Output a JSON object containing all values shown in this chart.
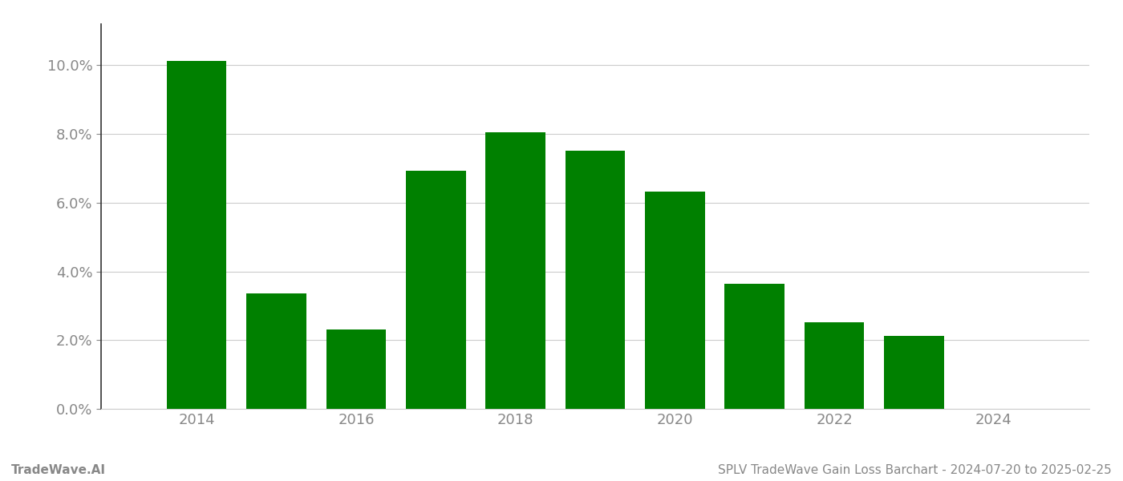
{
  "years": [
    2014,
    2015,
    2016,
    2017,
    2018,
    2019,
    2020,
    2021,
    2022,
    2023,
    2024
  ],
  "values": [
    0.1012,
    0.0335,
    0.0232,
    0.0693,
    0.0805,
    0.0752,
    0.0632,
    0.0365,
    0.0252,
    0.0212,
    0.0
  ],
  "bar_color": "#008000",
  "background_color": "#ffffff",
  "ylim": [
    0,
    0.112
  ],
  "yticks": [
    0.0,
    0.02,
    0.04,
    0.06,
    0.08,
    0.1
  ],
  "xtick_labels": [
    "2014",
    "2016",
    "2018",
    "2020",
    "2022",
    "2024"
  ],
  "xtick_positions": [
    2014,
    2016,
    2018,
    2020,
    2022,
    2024
  ],
  "footer_left": "TradeWave.AI",
  "footer_right": "SPLV TradeWave Gain Loss Barchart - 2024-07-20 to 2025-02-25",
  "grid_color": "#cccccc",
  "tick_label_color": "#888888",
  "footer_color": "#888888",
  "spine_color": "#333333",
  "bar_width": 0.75,
  "xlim": [
    2012.8,
    2025.2
  ]
}
